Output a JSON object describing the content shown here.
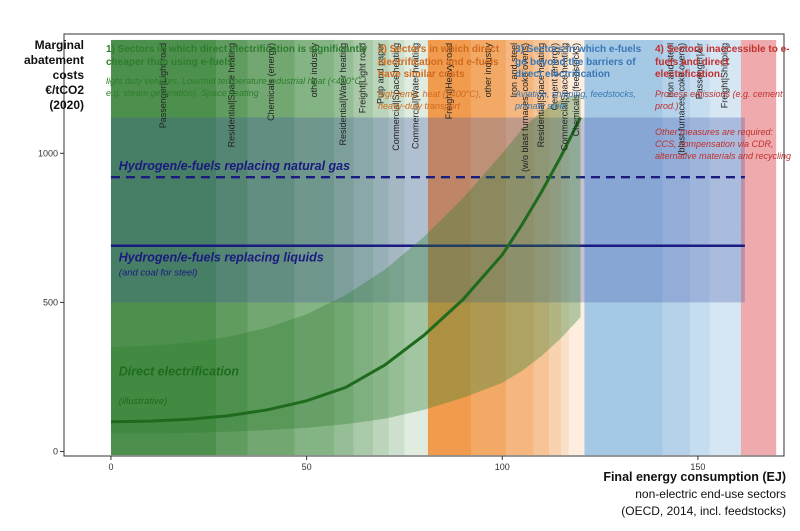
{
  "y_axis_title": [
    "Marginal",
    "abatement",
    "costs",
    "€/tCO2",
    "(2020)"
  ],
  "x_axis_title": "Final energy consumption (EJ)",
  "x_axis_subtitle": [
    "non-electric end-use sectors",
    "(OECD, 2014, incl. feedstocks)"
  ],
  "sectors": [
    {
      "title": "1) Sectors in which direct electrification is significantly cheaper than using e-fuels",
      "desc": "light duty vehicles, Low/mid temperature industrial heat (<400°C, e.g. steam generation), Space heating",
      "color": "#2e7d2e"
    },
    {
      "title": "2) Sectors in which direct electrification and e-fuels have similar costs",
      "desc": "high temp. heat (>400°C), heavy-duty transport",
      "color": "#d06a1e"
    },
    {
      "title": "3) Sectors in which e-fuels go beyond the barriers of direct electrification",
      "desc": "Aviation, shipping, feedstocks, primary steel",
      "color": "#3a78b5"
    },
    {
      "title": "4) Sectors inaccessible to e-fuels and direct electrification.",
      "desc": "Process emissions (e.g. cement prod.)",
      "note": "Other measures are required: CCS, compensation via CDR, alternative materials and recycling",
      "color": "#c0302e"
    }
  ],
  "chart_data": {
    "type": "area",
    "xlabel": "Final energy consumption (EJ)",
    "ylabel": "Marginal abatement costs €/tCO2 (2020)",
    "xlim": [
      -12,
      172
    ],
    "ylim": [
      -15,
      1400
    ],
    "xticks": [
      0,
      50,
      100,
      150
    ],
    "yticks": [
      0,
      500,
      1000
    ],
    "grid": false,
    "segments": [
      {
        "x0": 0,
        "x1": 27,
        "group": 1,
        "label": "Passenger|Light road"
      },
      {
        "x0": 27,
        "x1": 35,
        "group": 1,
        "label": "Residential|Space heating"
      },
      {
        "x0": 35,
        "x1": 47,
        "group": 1,
        "label": "Chemicals (energy)"
      },
      {
        "x0": 47,
        "x1": 57,
        "group": 1,
        "label": "other industry"
      },
      {
        "x0": 57,
        "x1": 62,
        "group": 1,
        "label": "Residential|Water heating"
      },
      {
        "x0": 62,
        "x1": 67,
        "group": 1,
        "label": "Freight|Light road"
      },
      {
        "x0": 67,
        "x1": 71,
        "group": 1,
        "label": "Pulp and paper"
      },
      {
        "x0": 71,
        "x1": 75,
        "group": 1,
        "label": "Commercial|Space heating"
      },
      {
        "x0": 75,
        "x1": 81,
        "group": 1,
        "label": "Commercial|Water heating"
      },
      {
        "x0": 81,
        "x1": 92,
        "group": 2,
        "label": "Freight|Heavy road"
      },
      {
        "x0": 92,
        "x1": 101,
        "group": 2,
        "label": "other industry"
      },
      {
        "x0": 101,
        "x1": 108,
        "group": 2,
        "label": "Iron and steel\n(w/o blast furnaces, coke ovens)"
      },
      {
        "x0": 108,
        "x1": 112,
        "group": 2,
        "label": "Residential|Space heating"
      },
      {
        "x0": 112,
        "x1": 115,
        "group": 2,
        "label": "Cement (energy)"
      },
      {
        "x0": 115,
        "x1": 117,
        "group": 2,
        "label": "Commercial|Space heating"
      },
      {
        "x0": 117,
        "x1": 121,
        "group": 2,
        "label": "Chemicals (feedstocks)"
      },
      {
        "x0": 121,
        "x1": 141,
        "group": 3,
        "label": ""
      },
      {
        "x0": 141,
        "x1": 148,
        "group": 3,
        "label": "Iron and steel\n(blast furnaces, coke ovens)"
      },
      {
        "x0": 148,
        "x1": 153,
        "group": 3,
        "label": "Passenger|Air"
      },
      {
        "x0": 153,
        "x1": 161,
        "group": 3,
        "label": "Freight|Shipping"
      },
      {
        "x0": 161,
        "x1": 170,
        "group": 4,
        "label": ""
      }
    ],
    "bands": [
      {
        "name": "Hydrogen/e-fuels replacing natural gas",
        "y0": 760,
        "y1": 1120,
        "line_y": 920,
        "style": "dashed",
        "x0": 0,
        "x1": 162
      },
      {
        "name": "Hydrogen/e-fuels replacing liquids",
        "note": "(and coal for steel)",
        "y0": 500,
        "y1": 760,
        "line_y": 690,
        "style": "solid",
        "x0": 0,
        "x1": 162
      }
    ],
    "direct_electrification": {
      "name": "Direct electrification",
      "note": "(illustrative)",
      "x": [
        0,
        10,
        20,
        30,
        40,
        50,
        60,
        70,
        80,
        90,
        100,
        105,
        110,
        115,
        120
      ],
      "y": [
        100,
        102,
        108,
        120,
        140,
        170,
        215,
        290,
        390,
        510,
        660,
        760,
        870,
        990,
        1120
      ],
      "band_upper": [
        350,
        355,
        365,
        385,
        415,
        460,
        525,
        610,
        720,
        850,
        1000,
        1080,
        1140,
        1180,
        1200
      ],
      "band_lower": [
        60,
        60,
        62,
        66,
        72,
        80,
        92,
        110,
        140,
        180,
        230,
        270,
        320,
        380,
        450
      ]
    },
    "colors": {
      "green": "#2e7d2e",
      "orange": "#ef8a2f",
      "blue": "#5b9bd0",
      "red": "#d9434a",
      "navy": "#1a1a80",
      "curve": "#1e6b1e"
    }
  }
}
